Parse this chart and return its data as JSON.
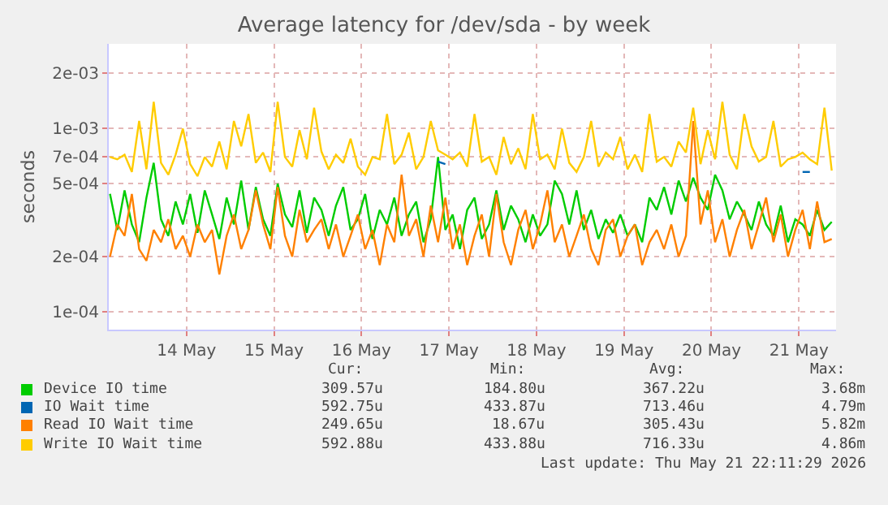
{
  "chart_data": {
    "type": "line",
    "title": "Average latency for /dev/sda - by week",
    "ylabel": "seconds",
    "log": true,
    "grid": true,
    "legend": "bottom",
    "marker": "none",
    "line_style": "solid",
    "xlim": [
      "2026-05-13T14:40",
      "2026-05-21T22:11"
    ],
    "xticks": [
      {
        "value": "2026-05-14T12:00",
        "label": "14 May"
      },
      {
        "value": "2026-05-15T12:00",
        "label": "15 May"
      },
      {
        "value": "2026-05-16T12:00",
        "label": "16 May"
      },
      {
        "value": "2026-05-17T12:00",
        "label": "17 May"
      },
      {
        "value": "2026-05-18T12:00",
        "label": "18 May"
      },
      {
        "value": "2026-05-19T12:00",
        "label": "19 May"
      },
      {
        "value": "2026-05-20T12:00",
        "label": "20 May"
      },
      {
        "value": "2026-05-21T12:00",
        "label": "21 May"
      }
    ],
    "ylim": [
      8e-05,
      0.0029
    ],
    "yticks": [
      {
        "value": 0.0001,
        "label": "1e-04"
      },
      {
        "value": 0.0002,
        "label": "2e-04"
      },
      {
        "value": 0.0005,
        "label": "5e-04"
      },
      {
        "value": 0.0007,
        "label": "7e-04"
      },
      {
        "value": 0.001,
        "label": "1e-03"
      },
      {
        "value": 0.002,
        "label": "2e-03"
      }
    ],
    "x": [
      "2026-05-13T15:00",
      "2026-05-13T17:00",
      "2026-05-13T19:00",
      "2026-05-13T21:00",
      "2026-05-13T23:00",
      "2026-05-14T01:00",
      "2026-05-14T03:00",
      "2026-05-14T05:00",
      "2026-05-14T07:00",
      "2026-05-14T09:00",
      "2026-05-14T11:00",
      "2026-05-14T13:00",
      "2026-05-14T15:00",
      "2026-05-14T17:00",
      "2026-05-14T19:00",
      "2026-05-14T21:00",
      "2026-05-14T23:00",
      "2026-05-15T01:00",
      "2026-05-15T03:00",
      "2026-05-15T05:00",
      "2026-05-15T07:00",
      "2026-05-15T09:00",
      "2026-05-15T11:00",
      "2026-05-15T13:00",
      "2026-05-15T15:00",
      "2026-05-15T17:00",
      "2026-05-15T19:00",
      "2026-05-15T21:00",
      "2026-05-15T23:00",
      "2026-05-16T01:00",
      "2026-05-16T03:00",
      "2026-05-16T05:00",
      "2026-05-16T07:00",
      "2026-05-16T09:00",
      "2026-05-16T11:00",
      "2026-05-16T13:00",
      "2026-05-16T15:00",
      "2026-05-16T17:00",
      "2026-05-16T19:00",
      "2026-05-16T21:00",
      "2026-05-16T23:00",
      "2026-05-17T01:00",
      "2026-05-17T03:00",
      "2026-05-17T05:00",
      "2026-05-17T07:00",
      "2026-05-17T09:00",
      "2026-05-17T11:00",
      "2026-05-17T13:00",
      "2026-05-17T15:00",
      "2026-05-17T17:00",
      "2026-05-17T19:00",
      "2026-05-17T21:00",
      "2026-05-17T23:00",
      "2026-05-18T01:00",
      "2026-05-18T03:00",
      "2026-05-18T05:00",
      "2026-05-18T07:00",
      "2026-05-18T09:00",
      "2026-05-18T11:00",
      "2026-05-18T13:00",
      "2026-05-18T15:00",
      "2026-05-18T17:00",
      "2026-05-18T19:00",
      "2026-05-18T21:00",
      "2026-05-18T23:00",
      "2026-05-19T01:00",
      "2026-05-19T03:00",
      "2026-05-19T05:00",
      "2026-05-19T07:00",
      "2026-05-19T09:00",
      "2026-05-19T11:00",
      "2026-05-19T13:00",
      "2026-05-19T15:00",
      "2026-05-19T17:00",
      "2026-05-19T19:00",
      "2026-05-19T21:00",
      "2026-05-19T23:00",
      "2026-05-20T01:00",
      "2026-05-20T03:00",
      "2026-05-20T05:00",
      "2026-05-20T07:00",
      "2026-05-20T09:00",
      "2026-05-20T11:00",
      "2026-05-20T13:00",
      "2026-05-20T15:00",
      "2026-05-20T17:00",
      "2026-05-20T19:00",
      "2026-05-20T21:00",
      "2026-05-20T23:00",
      "2026-05-21T01:00",
      "2026-05-21T03:00",
      "2026-05-21T05:00",
      "2026-05-21T07:00",
      "2026-05-21T09:00",
      "2026-05-21T11:00",
      "2026-05-21T13:00",
      "2026-05-21T15:00",
      "2026-05-21T17:00",
      "2026-05-21T19:00",
      "2026-05-21T21:00"
    ],
    "series": [
      {
        "name": "Device IO time",
        "color": "#00cc00",
        "values": [
          0.00044,
          0.00028,
          0.00046,
          0.0003,
          0.00024,
          0.00042,
          0.00065,
          0.00032,
          0.00026,
          0.0004,
          0.0003,
          0.00044,
          0.00027,
          0.00046,
          0.00034,
          0.00025,
          0.00042,
          0.0003,
          0.00052,
          0.00028,
          0.00048,
          0.00032,
          0.00026,
          0.0005,
          0.00034,
          0.00029,
          0.00046,
          0.00027,
          0.00042,
          0.00036,
          0.00026,
          0.00038,
          0.00048,
          0.00028,
          0.00032,
          0.00044,
          0.00025,
          0.00036,
          0.0003,
          0.00042,
          0.00026,
          0.00034,
          0.0004,
          0.00024,
          0.00032,
          0.0007,
          0.00028,
          0.00034,
          0.00022,
          0.00036,
          0.00042,
          0.00025,
          0.0003,
          0.00046,
          0.00028,
          0.00038,
          0.00032,
          0.00024,
          0.00034,
          0.00026,
          0.0003,
          0.00052,
          0.00044,
          0.0003,
          0.00046,
          0.00028,
          0.00036,
          0.00025,
          0.00032,
          0.00027,
          0.00034,
          0.00026,
          0.0003,
          0.00024,
          0.00042,
          0.00036,
          0.00048,
          0.00034,
          0.00052,
          0.0004,
          0.00054,
          0.00042,
          0.00036,
          0.00056,
          0.00046,
          0.00032,
          0.0004,
          0.00034,
          0.00028,
          0.0004,
          0.0003,
          0.00026,
          0.00038,
          0.00024,
          0.00032,
          0.0003,
          0.00026,
          0.00036,
          0.00028,
          0.00031
        ]
      },
      {
        "name": "IO Wait time",
        "color": "#0066b3",
        "values": [
          null,
          null,
          null,
          null,
          null,
          null,
          null,
          null,
          null,
          null,
          null,
          null,
          null,
          null,
          null,
          null,
          null,
          null,
          null,
          null,
          null,
          null,
          null,
          null,
          null,
          null,
          null,
          null,
          null,
          null,
          null,
          null,
          null,
          null,
          null,
          null,
          null,
          null,
          null,
          null,
          null,
          null,
          null,
          null,
          null,
          0.00066,
          0.00064,
          null,
          null,
          null,
          null,
          null,
          null,
          null,
          null,
          null,
          null,
          null,
          null,
          null,
          null,
          null,
          null,
          null,
          null,
          null,
          null,
          null,
          null,
          null,
          null,
          null,
          null,
          null,
          null,
          null,
          null,
          null,
          null,
          null,
          null,
          null,
          null,
          null,
          null,
          null,
          null,
          null,
          null,
          null,
          null,
          null,
          null,
          null,
          null,
          0.00058,
          0.00058,
          null,
          null,
          null
        ]
      },
      {
        "name": "Read IO Wait time",
        "color": "#ff8000",
        "values": [
          0.0002,
          0.0003,
          0.00026,
          0.00044,
          0.00022,
          0.00019,
          0.00028,
          0.00024,
          0.00032,
          0.00022,
          0.00026,
          0.0002,
          0.0003,
          0.00024,
          0.00028,
          0.00016,
          0.00026,
          0.00034,
          0.00022,
          0.00028,
          0.00046,
          0.0003,
          0.00022,
          0.00048,
          0.00026,
          0.0002,
          0.00036,
          0.00024,
          0.00028,
          0.00032,
          0.00022,
          0.0003,
          0.0002,
          0.00026,
          0.00034,
          0.00022,
          0.00028,
          0.00018,
          0.0003,
          0.00024,
          0.00056,
          0.00026,
          0.00032,
          0.0002,
          0.00038,
          0.00024,
          0.00042,
          0.00022,
          0.0003,
          0.00018,
          0.00026,
          0.00034,
          0.0002,
          0.00044,
          0.00024,
          0.00018,
          0.00028,
          0.00036,
          0.00022,
          0.0003,
          0.00046,
          0.00024,
          0.0003,
          0.0002,
          0.00026,
          0.00034,
          0.00022,
          0.00018,
          0.00028,
          0.00032,
          0.0002,
          0.00026,
          0.0003,
          0.00018,
          0.00024,
          0.00028,
          0.00022,
          0.0003,
          0.0002,
          0.00026,
          0.0011,
          0.0003,
          0.00046,
          0.00024,
          0.00032,
          0.0002,
          0.00028,
          0.00036,
          0.00022,
          0.0003,
          0.00042,
          0.00024,
          0.00034,
          0.0002,
          0.00028,
          0.00036,
          0.00022,
          0.0004,
          0.00024,
          0.00025
        ]
      },
      {
        "name": "Write IO Wait time",
        "color": "#ffcc00",
        "values": [
          0.0007,
          0.00068,
          0.00072,
          0.00058,
          0.0011,
          0.0006,
          0.0014,
          0.00065,
          0.00056,
          0.00072,
          0.001,
          0.00064,
          0.00055,
          0.0007,
          0.00062,
          0.00085,
          0.0006,
          0.0011,
          0.0008,
          0.0012,
          0.00065,
          0.00074,
          0.00058,
          0.0014,
          0.0007,
          0.00062,
          0.00098,
          0.00068,
          0.0013,
          0.00075,
          0.0006,
          0.00072,
          0.00065,
          0.00088,
          0.00062,
          0.00056,
          0.0007,
          0.00068,
          0.0012,
          0.00064,
          0.00072,
          0.00095,
          0.0006,
          0.0007,
          0.0011,
          0.00076,
          0.00072,
          0.00068,
          0.00074,
          0.00062,
          0.0012,
          0.00066,
          0.0007,
          0.00056,
          0.0009,
          0.00064,
          0.00078,
          0.0006,
          0.0012,
          0.00068,
          0.00072,
          0.0006,
          0.001,
          0.00065,
          0.00058,
          0.0007,
          0.0011,
          0.00062,
          0.00074,
          0.00068,
          0.0009,
          0.0006,
          0.00072,
          0.00058,
          0.0012,
          0.00066,
          0.0007,
          0.00062,
          0.00085,
          0.00074,
          0.0013,
          0.00064,
          0.00098,
          0.00068,
          0.0014,
          0.00072,
          0.0006,
          0.0012,
          0.0008,
          0.00066,
          0.0007,
          0.0011,
          0.00062,
          0.00068,
          0.0007,
          0.00074,
          0.00068,
          0.00064,
          0.0013,
          0.00059
        ]
      }
    ],
    "annotations": [
      "Cur:",
      "Min:",
      "Avg:",
      "Max:",
      "309.57u",
      "184.80u",
      "367.22u",
      "3.68m",
      "592.75u",
      "433.87u",
      "713.46u",
      "4.79m",
      "249.65u",
      "18.67u",
      "305.43u",
      "5.82m",
      "592.88u",
      "433.88u",
      "716.33u",
      "4.86m",
      "Last update: Thu May 21 22:11:29 2026"
    ]
  }
}
